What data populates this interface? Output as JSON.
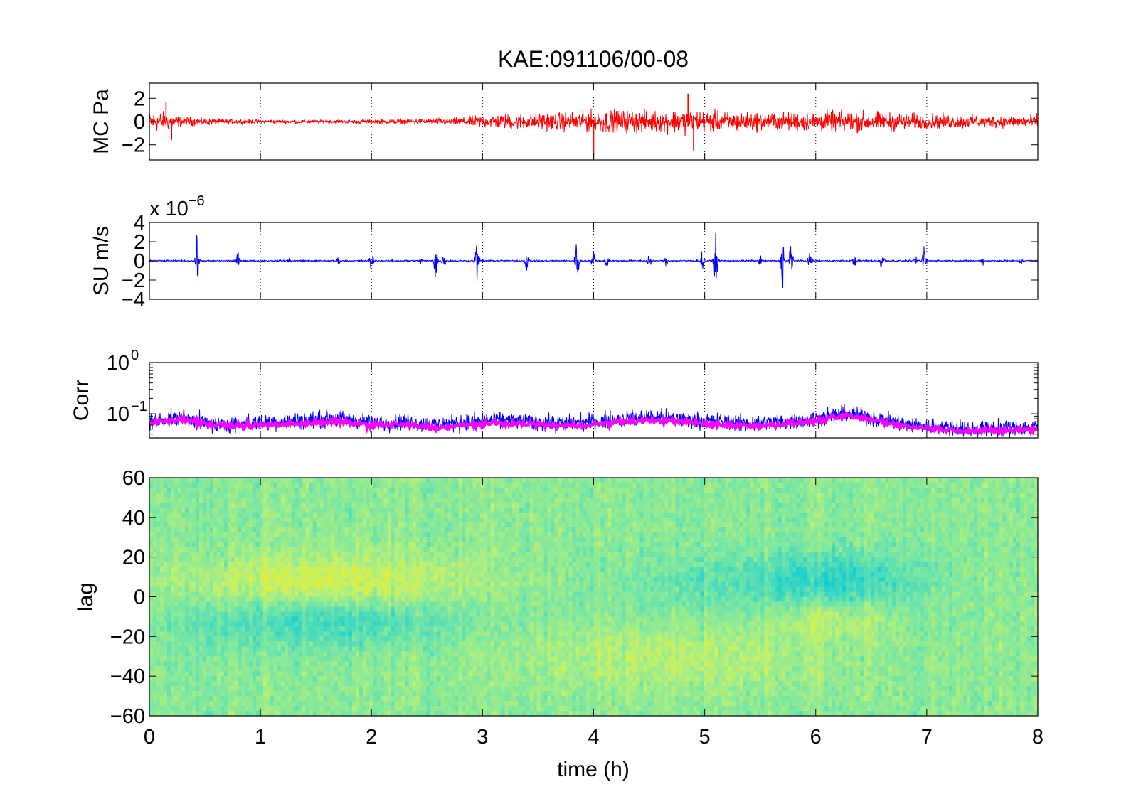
{
  "figure": {
    "title": "KAE:091106/00-08",
    "xlabel": "time (h)",
    "x_ticks": [
      "0",
      "1",
      "2",
      "3",
      "4",
      "5",
      "6",
      "7",
      "8"
    ]
  },
  "chart_data": [
    {
      "type": "line",
      "panel": "mc-pressure",
      "ylabel": "MC Pa",
      "xlim": [
        0,
        8
      ],
      "ylim": [
        -3.3,
        3.3
      ],
      "y_ticks": [
        "2",
        "0",
        "−2"
      ],
      "y_tick_values": [
        2,
        0,
        -2
      ],
      "color": "#ff0000",
      "envelope": {
        "x": [
          0,
          0.1,
          0.3,
          0.6,
          1.0,
          1.5,
          2.0,
          2.5,
          2.8,
          3.0,
          3.3,
          3.6,
          3.8,
          4.0,
          4.3,
          4.6,
          4.8,
          4.9,
          5.0,
          5.3,
          5.6,
          6.0,
          6.3,
          6.6,
          6.9,
          7.2,
          7.5,
          7.8,
          8.0
        ],
        "amp": [
          1.2,
          1.3,
          0.6,
          0.35,
          0.25,
          0.2,
          0.25,
          0.35,
          0.5,
          0.8,
          1.0,
          1.1,
          1.2,
          1.4,
          1.4,
          1.3,
          1.5,
          1.5,
          1.3,
          1.2,
          1.1,
          1.2,
          1.3,
          1.2,
          1.0,
          0.9,
          0.8,
          0.7,
          0.9
        ]
      },
      "spikes": [
        {
          "x": 4.0,
          "y": -3.2
        },
        {
          "x": 4.85,
          "y": 2.4
        },
        {
          "x": 4.9,
          "y": -2.5
        },
        {
          "x": 0.15,
          "y": 1.7
        },
        {
          "x": 0.2,
          "y": -1.6
        }
      ]
    },
    {
      "type": "line",
      "panel": "su-velocity",
      "ylabel": "SU m/s",
      "exponent_base": "x 10",
      "exponent_power": "−6",
      "xlim": [
        0,
        8
      ],
      "ylim": [
        -4,
        4
      ],
      "y_ticks": [
        "4",
        "2",
        "0",
        "−2",
        "−4"
      ],
      "y_tick_values": [
        4,
        2,
        0,
        -2,
        -4
      ],
      "color": "#0000ff",
      "baseline_amp": 0.12,
      "events": [
        {
          "x": 0.43,
          "amp": 3.5
        },
        {
          "x": 0.8,
          "amp": 1.3
        },
        {
          "x": 1.25,
          "amp": 0.7
        },
        {
          "x": 1.7,
          "amp": 0.6
        },
        {
          "x": 2.0,
          "amp": 1.8
        },
        {
          "x": 2.45,
          "amp": 0.6
        },
        {
          "x": 2.58,
          "amp": 4.0
        },
        {
          "x": 2.65,
          "amp": 1.3
        },
        {
          "x": 2.95,
          "amp": 4.0
        },
        {
          "x": 3.4,
          "amp": 1.8
        },
        {
          "x": 3.85,
          "amp": 3.8
        },
        {
          "x": 4.0,
          "amp": 2.0
        },
        {
          "x": 4.12,
          "amp": 1.5
        },
        {
          "x": 4.5,
          "amp": 1.2
        },
        {
          "x": 4.65,
          "amp": 1.1
        },
        {
          "x": 4.98,
          "amp": 1.8
        },
        {
          "x": 5.1,
          "amp": 4.0
        },
        {
          "x": 5.5,
          "amp": 0.8
        },
        {
          "x": 5.7,
          "amp": 4.0
        },
        {
          "x": 5.78,
          "amp": 3.6
        },
        {
          "x": 5.95,
          "amp": 2.0
        },
        {
          "x": 6.35,
          "amp": 1.0
        },
        {
          "x": 6.6,
          "amp": 2.3
        },
        {
          "x": 6.9,
          "amp": 0.8
        },
        {
          "x": 6.98,
          "amp": 4.0
        },
        {
          "x": 7.5,
          "amp": 0.7
        },
        {
          "x": 7.85,
          "amp": 0.8
        }
      ]
    },
    {
      "type": "line",
      "panel": "correlation",
      "ylabel": "Corr",
      "yscale": "log",
      "xlim": [
        0,
        8
      ],
      "ylim": [
        0.0338,
        1
      ],
      "y_tick_base": "10",
      "y_tick_powers": [
        "0",
        "−1"
      ],
      "y_tick_values": [
        1,
        0.1
      ],
      "series": [
        {
          "color": "#0000ff",
          "level": [
            0.07,
            0.085,
            0.06,
            0.065,
            0.07,
            0.075,
            0.08,
            0.065,
            0.07,
            0.06,
            0.07,
            0.075,
            0.07,
            0.065,
            0.07,
            0.08,
            0.085,
            0.075,
            0.07,
            0.065,
            0.07,
            0.08,
            0.1,
            0.08,
            0.06,
            0.055,
            0.05,
            0.052,
            0.055
          ]
        },
        {
          "color": "#ff00ff",
          "level": [
            0.065,
            0.08,
            0.06,
            0.058,
            0.062,
            0.066,
            0.07,
            0.06,
            0.062,
            0.052,
            0.06,
            0.065,
            0.063,
            0.058,
            0.062,
            0.07,
            0.075,
            0.068,
            0.062,
            0.058,
            0.063,
            0.072,
            0.09,
            0.072,
            0.055,
            0.05,
            0.046,
            0.047,
            0.05
          ]
        }
      ]
    },
    {
      "type": "heatmap",
      "panel": "lag-correlation",
      "ylabel": "lag",
      "xlim": [
        0,
        8
      ],
      "ylim": [
        -60,
        60
      ],
      "y_ticks": [
        "60",
        "40",
        "20",
        "0",
        "−20",
        "−40",
        "−60"
      ],
      "y_tick_values": [
        60,
        40,
        20,
        0,
        -20,
        -40,
        -60
      ],
      "colormap": [
        "#00c8d8",
        "#40d8c0",
        "#80e8a0",
        "#c0f070",
        "#f0f020"
      ],
      "features": [
        {
          "x": 1.6,
          "lag": 7,
          "sx": 0.9,
          "sl": 10,
          "v": 0.9
        },
        {
          "x": 1.6,
          "lag": -12,
          "sx": 0.9,
          "sl": 9,
          "v": -0.9
        },
        {
          "x": 6.2,
          "lag": 8,
          "sx": 0.5,
          "sl": 10,
          "v": -0.9
        },
        {
          "x": 6.1,
          "lag": -10,
          "sx": 0.4,
          "sl": 7,
          "v": 0.6
        },
        {
          "x": 4.7,
          "lag": -30,
          "sx": 1.0,
          "sl": 12,
          "v": 0.5
        },
        {
          "x": 5.2,
          "lag": 5,
          "sx": 0.8,
          "sl": 12,
          "v": -0.4
        }
      ]
    }
  ]
}
